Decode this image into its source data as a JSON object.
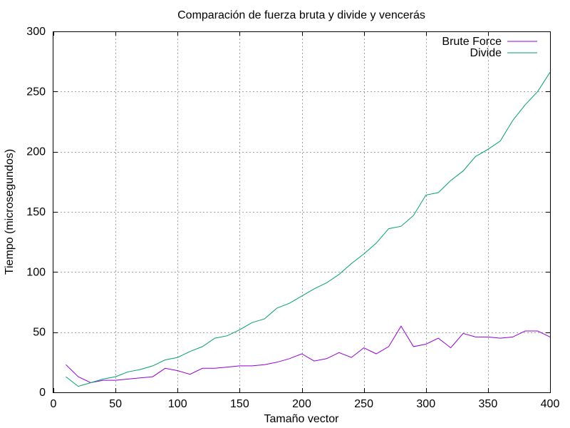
{
  "chart_data": {
    "type": "line",
    "title": "Comparación de fuerza bruta y divide y vencerás",
    "xlabel": "Tamaño vector",
    "ylabel": "Tiempo (microsegundos)",
    "xlim": [
      0,
      400
    ],
    "ylim": [
      0,
      300
    ],
    "xticks": [
      0,
      50,
      100,
      150,
      200,
      250,
      300,
      350,
      400
    ],
    "yticks": [
      0,
      50,
      100,
      150,
      200,
      250,
      300
    ],
    "grid": true,
    "legend_position": "top-right",
    "x": [
      10,
      20,
      30,
      40,
      50,
      60,
      70,
      80,
      90,
      100,
      110,
      120,
      130,
      140,
      150,
      160,
      170,
      180,
      190,
      200,
      210,
      220,
      230,
      240,
      250,
      260,
      270,
      280,
      290,
      300,
      310,
      320,
      330,
      340,
      350,
      360,
      370,
      380,
      390,
      400
    ],
    "series": [
      {
        "name": "Brute Force",
        "color": "#9400d3",
        "values": [
          23,
          13,
          8,
          10,
          10,
          11,
          12,
          13,
          20,
          18,
          15,
          20,
          20,
          21,
          22,
          22,
          23,
          25,
          28,
          32,
          26,
          28,
          33,
          29,
          37,
          32,
          38,
          55,
          38,
          40,
          45,
          37,
          49,
          46,
          46,
          45,
          46,
          51,
          51,
          46
        ]
      },
      {
        "name": "Divide",
        "color": "#009e73",
        "values": [
          13,
          5,
          8,
          11,
          13,
          17,
          19,
          22,
          27,
          29,
          34,
          38,
          45,
          47,
          52,
          58,
          61,
          70,
          74,
          80,
          86,
          91,
          98,
          107,
          115,
          124,
          136,
          138,
          147,
          164,
          166,
          176,
          184,
          196,
          202,
          209,
          226,
          239,
          250,
          266
        ]
      }
    ]
  }
}
